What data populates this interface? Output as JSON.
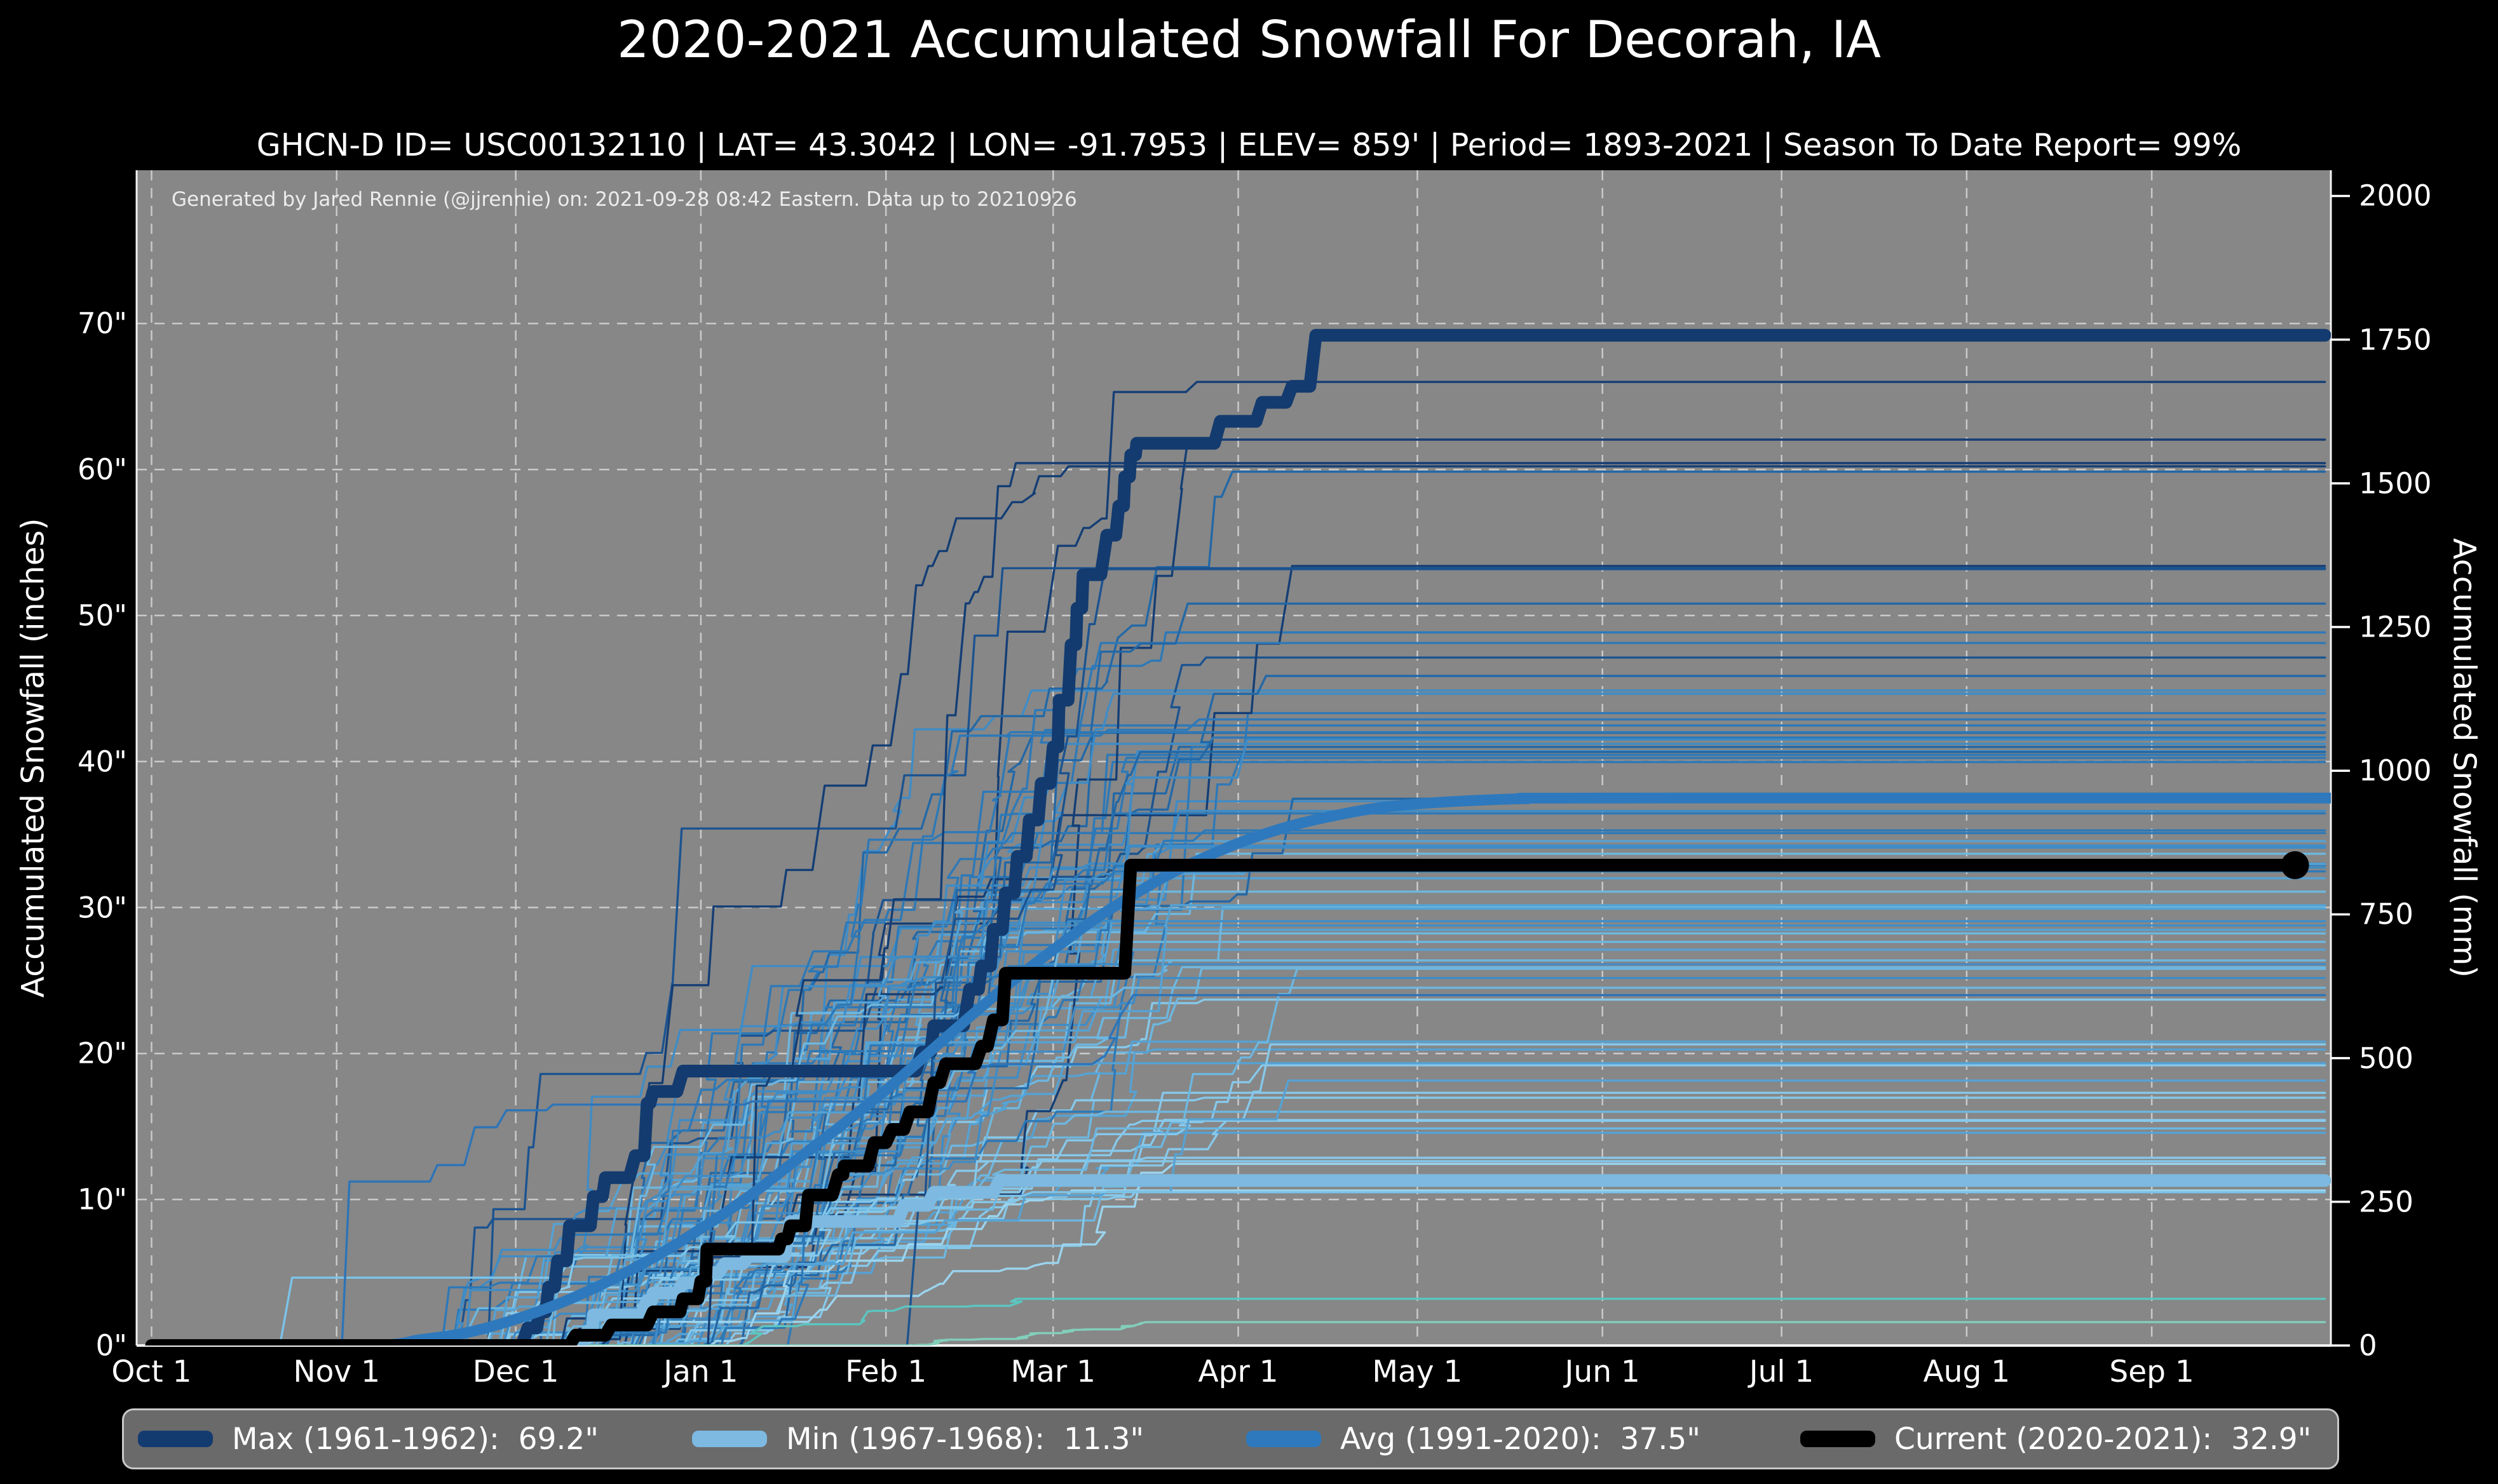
{
  "header": {
    "title": "2020-2021 Accumulated Snowfall For Decorah, IA",
    "subtitle": "GHCN-D ID= USC00132110 | LAT= 43.3042 | LON= -91.7953 | ELEV= 859' | Period= 1893-2021 | Season To Date Report= 99%"
  },
  "annotation": "Generated by Jared Rennie (@jjrennie) on: 2021-09-28 08:42 Eastern. Data up to 20210926",
  "chart_data": {
    "type": "line",
    "title": "2020-2021 Accumulated Snowfall For Decorah, IA",
    "ylabel_left": "Accumulated Snowfall (inches)",
    "ylabel_right": "Accumulated Snowfall (mm)",
    "plot_bg": "#878787",
    "grid": {
      "color": "#d2d2d2",
      "dash": "16 12",
      "width": 2.5
    },
    "spine_color": "#f2f2f2",
    "ylim_inches": [
      0,
      80.5
    ],
    "xlim_days": [
      -2.5,
      365
    ],
    "yticks_left_inches": [
      0,
      10,
      20,
      30,
      40,
      50,
      60,
      70
    ],
    "yticks_right_mm": [
      0,
      250,
      500,
      750,
      1000,
      1250,
      1500,
      1750,
      2000
    ],
    "mm_per_inch": 25.4,
    "x_month_ticks": [
      {
        "label": "Oct 1",
        "day": 0
      },
      {
        "label": "Nov 1",
        "day": 31
      },
      {
        "label": "Dec 1",
        "day": 61
      },
      {
        "label": "Jan 1",
        "day": 92
      },
      {
        "label": "Feb 1",
        "day": 123
      },
      {
        "label": "Mar 1",
        "day": 151
      },
      {
        "label": "Apr 1",
        "day": 182
      },
      {
        "label": "May 1",
        "day": 212
      },
      {
        "label": "Jun 1",
        "day": 243
      },
      {
        "label": "Jul 1",
        "day": 273
      },
      {
        "label": "Aug 1",
        "day": 304
      },
      {
        "label": "Sep 1",
        "day": 335
      }
    ],
    "series": [
      {
        "name": "max-1961-1962",
        "legend_label": "Max (1961-1962):  69.2\"",
        "color": "#133b6f",
        "width": 20,
        "total_inches": 69.2,
        "points": [
          [
            0,
            0
          ],
          [
            62,
            0
          ],
          [
            63,
            1.2
          ],
          [
            64.5,
            1.2
          ],
          [
            65,
            2.3
          ],
          [
            66,
            2.3
          ],
          [
            66.5,
            4
          ],
          [
            67.5,
            4
          ],
          [
            68,
            5.8
          ],
          [
            69.5,
            5.8
          ],
          [
            70,
            8.2
          ],
          [
            73.5,
            8.2
          ],
          [
            74,
            10.2
          ],
          [
            75.5,
            10.2
          ],
          [
            76,
            11.5
          ],
          [
            80,
            11.5
          ],
          [
            81,
            13
          ],
          [
            82.5,
            13
          ],
          [
            83,
            16.6
          ],
          [
            83.5,
            16.6
          ],
          [
            84,
            17.4
          ],
          [
            88,
            17.4
          ],
          [
            89,
            18.8
          ],
          [
            128,
            18.8
          ],
          [
            129,
            20.1
          ],
          [
            130.5,
            20.1
          ],
          [
            131,
            21.9
          ],
          [
            136,
            21.9
          ],
          [
            137,
            24.4
          ],
          [
            138.5,
            24.4
          ],
          [
            139,
            26
          ],
          [
            140.5,
            26
          ],
          [
            141,
            28.5
          ],
          [
            142.5,
            28.5
          ],
          [
            143,
            31
          ],
          [
            144.5,
            31
          ],
          [
            145,
            33.5
          ],
          [
            146.5,
            33.5
          ],
          [
            147,
            36
          ],
          [
            148.5,
            36
          ],
          [
            149,
            38.5
          ],
          [
            150.5,
            38.5
          ],
          [
            151,
            41
          ],
          [
            151.8,
            41
          ],
          [
            152,
            44.2
          ],
          [
            153.5,
            44.2
          ],
          [
            154,
            48
          ],
          [
            154.8,
            48
          ],
          [
            155,
            50.5
          ],
          [
            155.8,
            50.5
          ],
          [
            156,
            52.8
          ],
          [
            159,
            52.8
          ],
          [
            160,
            55.5
          ],
          [
            161.5,
            55.5
          ],
          [
            162,
            57.5
          ],
          [
            162.8,
            57.5
          ],
          [
            163,
            59.5
          ],
          [
            163.8,
            59.5
          ],
          [
            164,
            61
          ],
          [
            164.8,
            61
          ],
          [
            165,
            61.8
          ],
          [
            178,
            61.8
          ],
          [
            179,
            63.3
          ],
          [
            185,
            63.3
          ],
          [
            186,
            64.6
          ],
          [
            190,
            64.6
          ],
          [
            191,
            65.7
          ],
          [
            194,
            65.7
          ],
          [
            195,
            69.2
          ],
          [
            364,
            69.2
          ]
        ]
      },
      {
        "name": "min-1967-1968",
        "legend_label": "Min (1967-1968):  11.3\"",
        "color": "#7db9e0",
        "width": 20,
        "total_inches": 11.3,
        "points": [
          [
            0,
            0
          ],
          [
            72,
            0
          ],
          [
            73,
            1
          ],
          [
            73.8,
            1
          ],
          [
            74,
            2.1
          ],
          [
            82,
            2.1
          ],
          [
            83,
            3.1
          ],
          [
            83.8,
            3.1
          ],
          [
            84,
            3.6
          ],
          [
            88,
            3.6
          ],
          [
            89,
            4.3
          ],
          [
            92,
            4.3
          ],
          [
            93,
            5
          ],
          [
            95,
            5
          ],
          [
            96,
            5.6
          ],
          [
            99,
            5.6
          ],
          [
            100,
            6.1
          ],
          [
            106,
            6.1
          ],
          [
            107,
            8.5
          ],
          [
            125,
            8.5
          ],
          [
            126,
            9.6
          ],
          [
            130,
            9.6
          ],
          [
            131,
            10.5
          ],
          [
            141,
            10.5
          ],
          [
            142,
            11.3
          ],
          [
            364,
            11.3
          ]
        ]
      },
      {
        "name": "avg-1991-2020",
        "legend_label": "Avg (1991-2020):  37.5\"",
        "color": "#2e79bd",
        "width": 17,
        "smooth": true,
        "total_inches": 37.5,
        "points": [
          [
            0,
            0
          ],
          [
            36,
            0
          ],
          [
            45,
            0.4
          ],
          [
            53,
            0.9
          ],
          [
            61,
            1.8
          ],
          [
            69,
            3
          ],
          [
            76,
            4.3
          ],
          [
            84,
            6
          ],
          [
            92,
            8
          ],
          [
            100,
            10.2
          ],
          [
            107,
            12.4
          ],
          [
            115,
            14.9
          ],
          [
            123,
            17.5
          ],
          [
            130,
            20
          ],
          [
            137,
            22.5
          ],
          [
            144,
            24.9
          ],
          [
            151,
            27.1
          ],
          [
            158,
            29.2
          ],
          [
            165,
            31
          ],
          [
            172,
            32.6
          ],
          [
            182,
            34.4
          ],
          [
            190,
            35.5
          ],
          [
            197,
            36.2
          ],
          [
            205,
            36.8
          ],
          [
            212,
            37.1
          ],
          [
            220,
            37.3
          ],
          [
            230,
            37.45
          ],
          [
            242,
            37.5
          ],
          [
            365,
            37.5
          ]
        ]
      },
      {
        "name": "current-2020-2021",
        "legend_label": "Current (2020-2021):  32.9\"",
        "color": "#000000",
        "width": 20,
        "end_dot": true,
        "dot_radius": 22,
        "total_inches": 32.9,
        "points": [
          [
            0,
            0
          ],
          [
            70,
            0
          ],
          [
            71,
            0.7
          ],
          [
            76,
            0.7
          ],
          [
            77,
            1.4
          ],
          [
            83,
            1.4
          ],
          [
            84,
            2.3
          ],
          [
            88.5,
            2.3
          ],
          [
            89,
            3.2
          ],
          [
            91.5,
            3.2
          ],
          [
            92,
            4.4
          ],
          [
            92.8,
            4.4
          ],
          [
            93,
            6.6
          ],
          [
            105,
            6.6
          ],
          [
            105.5,
            7.3
          ],
          [
            106.5,
            7.3
          ],
          [
            107,
            8.2
          ],
          [
            109.5,
            8.2
          ],
          [
            110,
            10.3
          ],
          [
            114,
            10.3
          ],
          [
            115,
            11.7
          ],
          [
            115.8,
            11.7
          ],
          [
            116,
            12.3
          ],
          [
            120,
            12.3
          ],
          [
            121,
            13.9
          ],
          [
            123,
            13.9
          ],
          [
            124,
            14.8
          ],
          [
            126,
            14.8
          ],
          [
            127,
            16
          ],
          [
            130,
            16
          ],
          [
            131,
            18
          ],
          [
            132,
            18
          ],
          [
            133,
            19.3
          ],
          [
            138,
            19.3
          ],
          [
            139,
            20.5
          ],
          [
            140,
            20.5
          ],
          [
            141,
            22.3
          ],
          [
            142.5,
            22.3
          ],
          [
            143,
            25.5
          ],
          [
            163,
            25.5
          ],
          [
            164,
            32.9
          ],
          [
            359,
            32.9
          ]
        ]
      }
    ],
    "background_seasons": {
      "comment": "thin ensemble of 1893-2021 seasonal accumulation traces, generated deterministically",
      "count": 84,
      "seed": 20210926,
      "total_range": [
        4,
        66
      ],
      "start_day_range": [
        46,
        92
      ],
      "accum_end_range": [
        146,
        192
      ],
      "line_width": 3.4,
      "palette": [
        "#143e75",
        "#1b5390",
        "#2368a6",
        "#2d79b8",
        "#3f8cc6",
        "#55a2d4",
        "#6db7e0",
        "#86c8ea",
        "#9bd4ee"
      ],
      "extra_lines": [
        {
          "color": "#5cc5c0",
          "total": 3.2,
          "start": 96
        },
        {
          "color": "#82ceba",
          "total": 1.6,
          "start": 126
        },
        {
          "color": "#7cc3e8",
          "total": 10.5,
          "start": 16
        },
        {
          "color": "#2d74b8",
          "total": 24.0,
          "start": 22
        }
      ]
    }
  },
  "legend": {
    "items": [
      {
        "label": "Max (1961-1962):  69.2\"",
        "color": "#133b6f"
      },
      {
        "label": "Min (1967-1968):  11.3\"",
        "color": "#7db9e0"
      },
      {
        "label": "Avg (1991-2020):  37.5\"",
        "color": "#2e79bd"
      },
      {
        "label": "Current (2020-2021):  32.9\"",
        "color": "#000000"
      }
    ]
  }
}
